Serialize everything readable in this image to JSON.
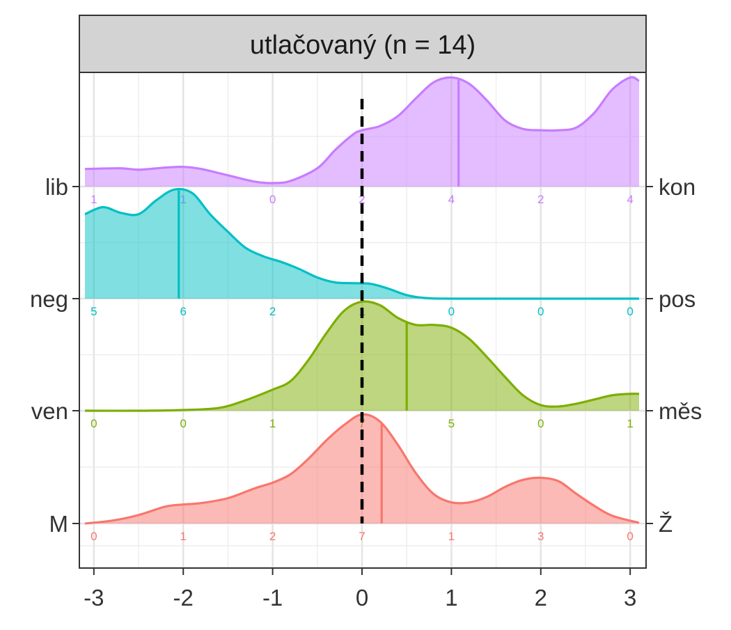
{
  "chart_data": {
    "type": "ridgeline",
    "title": "utlačovaný (n = 14)",
    "xlim": [
      -3.1,
      3.1
    ],
    "x_ticks": [
      "-3",
      "-2",
      "-1",
      "0",
      "1",
      "2",
      "3"
    ],
    "x_tick_values": [
      -3,
      -2,
      -1,
      0,
      1,
      2,
      3
    ],
    "reference_line_x": 0,
    "grid": true,
    "rows": [
      {
        "left_label": "M",
        "right_label": "Ž",
        "color": "#F8766D",
        "median": 0.22,
        "counts": [
          "0",
          "1",
          "2",
          "7",
          "1",
          "3",
          "0"
        ],
        "density": [
          [
            -3.1,
            0.0
          ],
          [
            -2.8,
            0.04
          ],
          [
            -2.5,
            0.12
          ],
          [
            -2.2,
            0.24
          ],
          [
            -2.0,
            0.27
          ],
          [
            -1.8,
            0.29
          ],
          [
            -1.5,
            0.36
          ],
          [
            -1.2,
            0.5
          ],
          [
            -1.0,
            0.58
          ],
          [
            -0.8,
            0.7
          ],
          [
            -0.6,
            0.92
          ],
          [
            -0.4,
            1.18
          ],
          [
            -0.2,
            1.4
          ],
          [
            0.0,
            1.55
          ],
          [
            0.2,
            1.45
          ],
          [
            0.4,
            1.12
          ],
          [
            0.6,
            0.72
          ],
          [
            0.8,
            0.42
          ],
          [
            1.0,
            0.3
          ],
          [
            1.2,
            0.3
          ],
          [
            1.4,
            0.38
          ],
          [
            1.6,
            0.52
          ],
          [
            1.8,
            0.62
          ],
          [
            2.0,
            0.65
          ],
          [
            2.2,
            0.6
          ],
          [
            2.4,
            0.42
          ],
          [
            2.6,
            0.25
          ],
          [
            2.8,
            0.11
          ],
          [
            3.1,
            0.01
          ]
        ]
      },
      {
        "left_label": "ven",
        "right_label": "měs",
        "color": "#7CAE00",
        "median": 0.5,
        "counts": [
          "0",
          "0",
          "1",
          "7",
          "5",
          "0",
          "1"
        ],
        "density": [
          [
            -3.1,
            0.0
          ],
          [
            -2.5,
            0.0
          ],
          [
            -2.0,
            0.01
          ],
          [
            -1.6,
            0.04
          ],
          [
            -1.3,
            0.15
          ],
          [
            -1.0,
            0.3
          ],
          [
            -0.8,
            0.42
          ],
          [
            -0.6,
            0.72
          ],
          [
            -0.4,
            1.1
          ],
          [
            -0.2,
            1.42
          ],
          [
            0.0,
            1.55
          ],
          [
            0.2,
            1.5
          ],
          [
            0.4,
            1.32
          ],
          [
            0.6,
            1.22
          ],
          [
            0.8,
            1.22
          ],
          [
            1.0,
            1.18
          ],
          [
            1.2,
            1.02
          ],
          [
            1.4,
            0.76
          ],
          [
            1.6,
            0.48
          ],
          [
            1.8,
            0.22
          ],
          [
            2.0,
            0.08
          ],
          [
            2.2,
            0.06
          ],
          [
            2.4,
            0.1
          ],
          [
            2.6,
            0.16
          ],
          [
            2.8,
            0.22
          ],
          [
            3.0,
            0.24
          ],
          [
            3.1,
            0.24
          ]
        ]
      },
      {
        "left_label": "neg",
        "right_label": "pos",
        "color": "#00BFC4",
        "median": -2.05,
        "counts": [
          "5",
          "6",
          "2",
          "1",
          "0",
          "0",
          "0"
        ],
        "density": [
          [
            -3.1,
            1.2
          ],
          [
            -2.9,
            1.3
          ],
          [
            -2.7,
            1.22
          ],
          [
            -2.5,
            1.2
          ],
          [
            -2.3,
            1.4
          ],
          [
            -2.1,
            1.55
          ],
          [
            -1.9,
            1.5
          ],
          [
            -1.7,
            1.2
          ],
          [
            -1.5,
            0.95
          ],
          [
            -1.3,
            0.72
          ],
          [
            -1.1,
            0.6
          ],
          [
            -0.9,
            0.52
          ],
          [
            -0.7,
            0.42
          ],
          [
            -0.5,
            0.3
          ],
          [
            -0.3,
            0.23
          ],
          [
            -0.1,
            0.22
          ],
          [
            0.1,
            0.21
          ],
          [
            0.3,
            0.14
          ],
          [
            0.5,
            0.05
          ],
          [
            0.7,
            0.01
          ],
          [
            1.0,
            0.0
          ],
          [
            2.0,
            0.0
          ],
          [
            3.1,
            0.0
          ]
        ]
      },
      {
        "left_label": "lib",
        "right_label": "kon",
        "color": "#C77CFF",
        "median": 1.08,
        "counts": [
          "1",
          "1",
          "0",
          "2",
          "4",
          "2",
          "4"
        ],
        "density": [
          [
            -3.1,
            0.25
          ],
          [
            -2.7,
            0.26
          ],
          [
            -2.5,
            0.24
          ],
          [
            -2.2,
            0.27
          ],
          [
            -2.0,
            0.28
          ],
          [
            -1.8,
            0.25
          ],
          [
            -1.5,
            0.16
          ],
          [
            -1.2,
            0.07
          ],
          [
            -1.0,
            0.05
          ],
          [
            -0.8,
            0.08
          ],
          [
            -0.5,
            0.26
          ],
          [
            -0.3,
            0.52
          ],
          [
            -0.1,
            0.74
          ],
          [
            0.0,
            0.8
          ],
          [
            0.2,
            0.86
          ],
          [
            0.4,
            1.0
          ],
          [
            0.6,
            1.25
          ],
          [
            0.8,
            1.48
          ],
          [
            1.0,
            1.55
          ],
          [
            1.2,
            1.46
          ],
          [
            1.4,
            1.22
          ],
          [
            1.6,
            0.94
          ],
          [
            1.8,
            0.82
          ],
          [
            2.0,
            0.8
          ],
          [
            2.2,
            0.8
          ],
          [
            2.4,
            0.84
          ],
          [
            2.6,
            1.05
          ],
          [
            2.8,
            1.38
          ],
          [
            3.0,
            1.55
          ],
          [
            3.1,
            1.5
          ]
        ]
      }
    ]
  }
}
